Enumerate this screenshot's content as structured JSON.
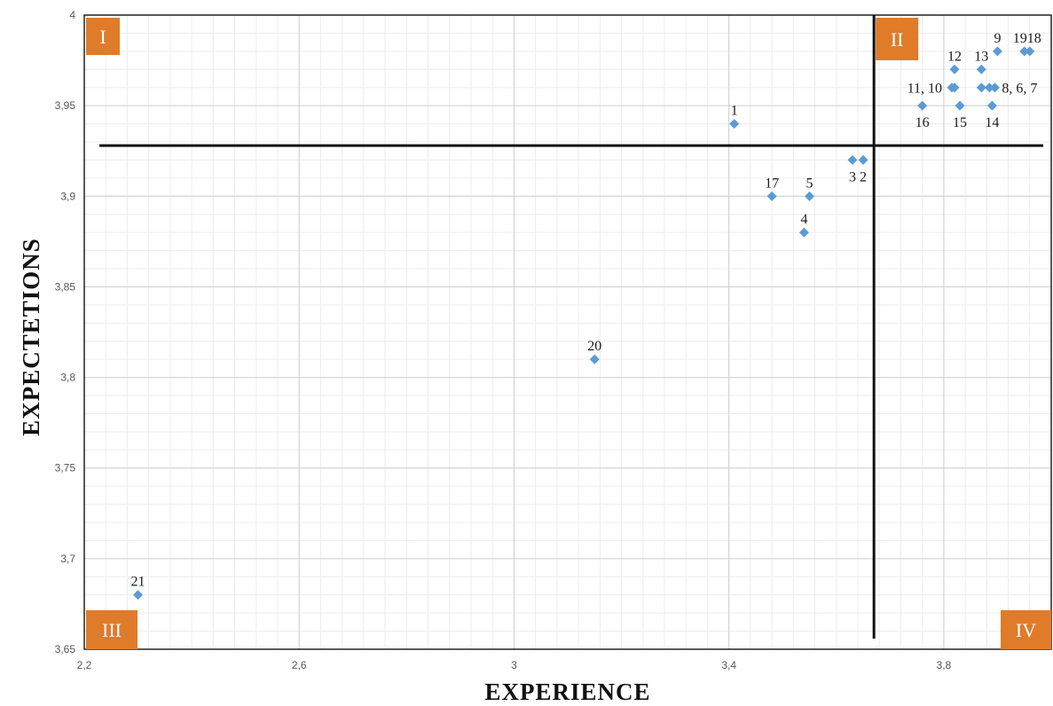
{
  "chart_data": {
    "type": "scatter",
    "xlabel": "EXPERIENCE",
    "ylabel": "EXPECTETIONS",
    "xlim": [
      2.2,
      4.0
    ],
    "ylim": [
      3.65,
      4.0
    ],
    "x_ticks": [
      2.2,
      2.6,
      3.0,
      3.4,
      3.8
    ],
    "x_tick_labels": [
      "2,2",
      "2,6",
      "3",
      "3,4",
      "3,8"
    ],
    "y_ticks": [
      3.65,
      3.7,
      3.75,
      3.8,
      3.85,
      3.9,
      3.95,
      4.0
    ],
    "y_tick_labels": [
      "3,65",
      "3,7",
      "3,75",
      "3,8",
      "3,85",
      "3,9",
      "3,95",
      "4"
    ],
    "grid": true,
    "marker_color": "#5b9bd5",
    "quadrant_color": "#e07b2a",
    "divider_x": 3.67,
    "divider_y": 3.928,
    "quadrants": [
      "I",
      "II",
      "III",
      "IV"
    ],
    "points": [
      {
        "label": "1",
        "x": 3.41,
        "y": 3.94
      },
      {
        "label": "2",
        "x": 3.65,
        "y": 3.92
      },
      {
        "label": "3",
        "x": 3.63,
        "y": 3.92
      },
      {
        "label": "4",
        "x": 3.54,
        "y": 3.88
      },
      {
        "label": "5",
        "x": 3.55,
        "y": 3.9
      },
      {
        "label": "6",
        "x": 3.885,
        "y": 3.96
      },
      {
        "label": "7",
        "x": 3.895,
        "y": 3.96
      },
      {
        "label": "8",
        "x": 3.87,
        "y": 3.96
      },
      {
        "label": "9",
        "x": 3.9,
        "y": 3.98
      },
      {
        "label": "10",
        "x": 3.82,
        "y": 3.96
      },
      {
        "label": "11",
        "x": 3.815,
        "y": 3.96
      },
      {
        "label": "12",
        "x": 3.82,
        "y": 3.97
      },
      {
        "label": "13",
        "x": 3.87,
        "y": 3.97
      },
      {
        "label": "14",
        "x": 3.89,
        "y": 3.95
      },
      {
        "label": "15",
        "x": 3.83,
        "y": 3.95
      },
      {
        "label": "16",
        "x": 3.76,
        "y": 3.95
      },
      {
        "label": "17",
        "x": 3.48,
        "y": 3.9
      },
      {
        "label": "18",
        "x": 3.96,
        "y": 3.98
      },
      {
        "label": "19",
        "x": 3.95,
        "y": 3.98
      },
      {
        "label": "20",
        "x": 3.15,
        "y": 3.81
      },
      {
        "label": "21",
        "x": 2.3,
        "y": 3.68
      }
    ],
    "point_labels": [
      {
        "text": "1",
        "x": 3.41,
        "y": 3.94,
        "pos": "above"
      },
      {
        "text": "3",
        "x": 3.63,
        "y": 3.92,
        "pos": "below"
      },
      {
        "text": "2",
        "x": 3.65,
        "y": 3.92,
        "pos": "below"
      },
      {
        "text": "17",
        "x": 3.48,
        "y": 3.9,
        "pos": "above"
      },
      {
        "text": "5",
        "x": 3.55,
        "y": 3.9,
        "pos": "above"
      },
      {
        "text": "4",
        "x": 3.54,
        "y": 3.88,
        "pos": "above"
      },
      {
        "text": "20",
        "x": 3.15,
        "y": 3.81,
        "pos": "above"
      },
      {
        "text": "21",
        "x": 2.3,
        "y": 3.68,
        "pos": "above"
      },
      {
        "text": "12",
        "x": 3.82,
        "y": 3.97,
        "pos": "above"
      },
      {
        "text": "13",
        "x": 3.87,
        "y": 3.97,
        "pos": "above"
      },
      {
        "text": "9",
        "x": 3.9,
        "y": 3.98,
        "pos": "above"
      },
      {
        "text": "1918",
        "x": 3.955,
        "y": 3.98,
        "pos": "above"
      },
      {
        "text": "11, 10",
        "x": 3.815,
        "y": 3.96,
        "pos": "left"
      },
      {
        "text": "8, 6, 7",
        "x": 3.895,
        "y": 3.96,
        "pos": "right"
      },
      {
        "text": "16",
        "x": 3.76,
        "y": 3.95,
        "pos": "below"
      },
      {
        "text": "15",
        "x": 3.83,
        "y": 3.95,
        "pos": "below"
      },
      {
        "text": "14",
        "x": 3.89,
        "y": 3.95,
        "pos": "below"
      }
    ]
  }
}
